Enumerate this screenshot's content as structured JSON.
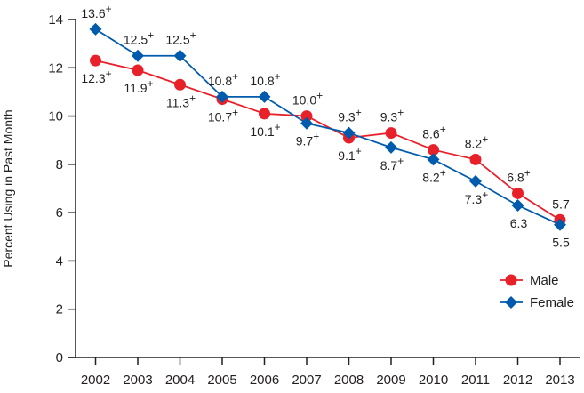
{
  "chart_data": {
    "type": "line",
    "title": "",
    "xlabel": "",
    "ylabel": "Percent Using in Past Month",
    "ylim": [
      0,
      14
    ],
    "yticks": [
      0,
      2,
      4,
      6,
      8,
      10,
      12,
      14
    ],
    "grid": false,
    "legend_position": "lower right",
    "categories": [
      "2002",
      "2003",
      "2004",
      "2005",
      "2006",
      "2007",
      "2008",
      "2009",
      "2010",
      "2011",
      "2012",
      "2013"
    ],
    "series": [
      {
        "name": "Male",
        "color": "#e8202a",
        "marker": "circle",
        "values": [
          12.3,
          11.9,
          11.3,
          10.7,
          10.1,
          10.0,
          9.1,
          9.3,
          8.6,
          8.2,
          6.8,
          5.7
        ],
        "labels": [
          "12.3+",
          "11.9+",
          "11.3+",
          "10.7+",
          "10.1+",
          "10.0+",
          "9.1+",
          "9.3+",
          "8.6+",
          "8.2+",
          "6.8+",
          "5.7"
        ],
        "label_pos": [
          "below",
          "below",
          "below",
          "below",
          "below",
          "above",
          "below",
          "above",
          "above",
          "above",
          "above",
          "above"
        ]
      },
      {
        "name": "Female",
        "color": "#005bac",
        "marker": "diamond",
        "values": [
          13.6,
          12.5,
          12.5,
          10.8,
          10.8,
          9.7,
          9.3,
          8.7,
          8.2,
          7.3,
          6.3,
          5.5
        ],
        "labels": [
          "13.6+",
          "12.5+",
          "12.5+",
          "10.8+",
          "10.8+",
          "9.7+",
          "9.3+",
          "8.7+",
          "8.2+",
          "7.3+",
          "6.3",
          "5.5"
        ],
        "label_pos": [
          "above",
          "above",
          "above",
          "above",
          "above",
          "below",
          "above",
          "below",
          "below",
          "below",
          "below",
          "below"
        ]
      }
    ]
  }
}
